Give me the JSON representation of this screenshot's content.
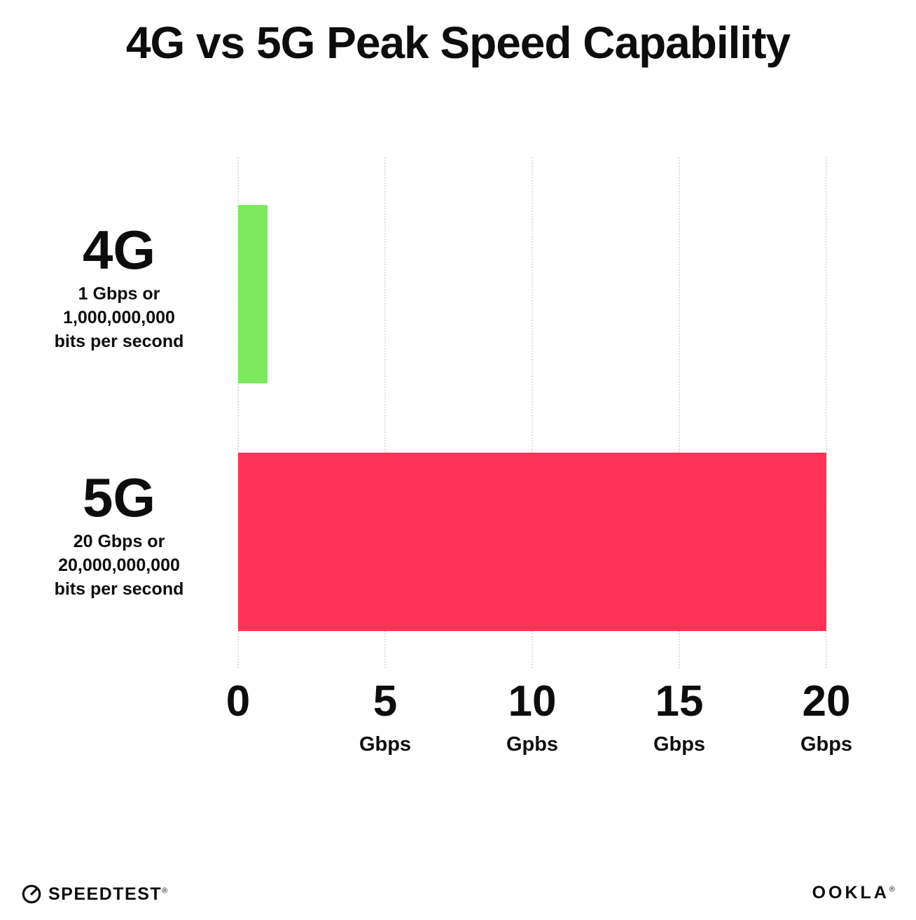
{
  "title": "4G vs 5G Peak Speed Capability",
  "chart_data": {
    "type": "bar",
    "orientation": "horizontal",
    "title": "4G vs 5G Peak Speed Capability",
    "xlabel": "Gbps",
    "ylabel": "",
    "xlim": [
      0,
      20
    ],
    "grid": "dotted-vertical",
    "legend": "none",
    "rows": [
      {
        "label": "4G",
        "sublabel_lines": [
          "1 Gbps or",
          "1,000,000,000",
          "bits per second"
        ],
        "value": 1,
        "color": "#7de95e"
      },
      {
        "label": "5G",
        "sublabel_lines": [
          "20 Gbps or",
          "20,000,000,000",
          "bits per second"
        ],
        "value": 20,
        "color": "#ff3355"
      }
    ],
    "x_ticks": [
      {
        "value": 0,
        "num": "0",
        "unit": ""
      },
      {
        "value": 5,
        "num": "5",
        "unit": "Gbps"
      },
      {
        "value": 10,
        "num": "10",
        "unit": "Gpbs"
      },
      {
        "value": 15,
        "num": "15",
        "unit": "Gbps"
      },
      {
        "value": 20,
        "num": "20",
        "unit": "Gbps"
      }
    ]
  },
  "footer": {
    "speedtest_label": "SPEEDTEST",
    "speedtest_mark": "®",
    "ookla_label": "OOKLA",
    "ookla_mark": "®"
  },
  "colors": {
    "bar_4g": "#7de95e",
    "bar_5g": "#ff3355",
    "gridline": "#dedede",
    "text": "#0d0d0d",
    "background": "#ffffff"
  }
}
